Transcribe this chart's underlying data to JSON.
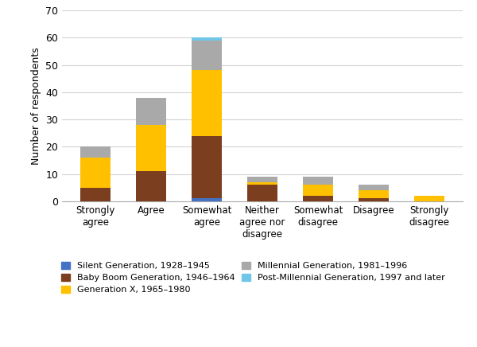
{
  "categories": [
    "Strongly\nagree",
    "Agree",
    "Somewhat\nagree",
    "Neither\nagree nor\ndisagree",
    "Somewhat\ndisagree",
    "Disagree",
    "Strongly\ndisagree"
  ],
  "generations": [
    "Silent Generation, 1928–1945",
    "Baby Boom Generation, 1946–1964",
    "Generation X, 1965–1980",
    "Millennial Generation, 1981–1996",
    "Post-Millennial Generation, 1997 and later"
  ],
  "colors": [
    "#4472C4",
    "#7B3F20",
    "#FFC000",
    "#A9A9A9",
    "#70C6E8"
  ],
  "data": [
    [
      0,
      0,
      1,
      0,
      0,
      0,
      0
    ],
    [
      5,
      11,
      23,
      6,
      2,
      1,
      0
    ],
    [
      11,
      17,
      24,
      1,
      4,
      3,
      2
    ],
    [
      4,
      10,
      11,
      2,
      3,
      2,
      0
    ],
    [
      0,
      0,
      1,
      0,
      0,
      0,
      0
    ]
  ],
  "ylabel": "Number of respondents",
  "ylim": [
    0,
    70
  ],
  "yticks": [
    0,
    10,
    20,
    30,
    40,
    50,
    60,
    70
  ],
  "background_color": "#ffffff",
  "grid_color": "#d3d3d3",
  "legend_order": [
    0,
    1,
    2,
    3,
    4
  ],
  "legend_ncol": 2
}
